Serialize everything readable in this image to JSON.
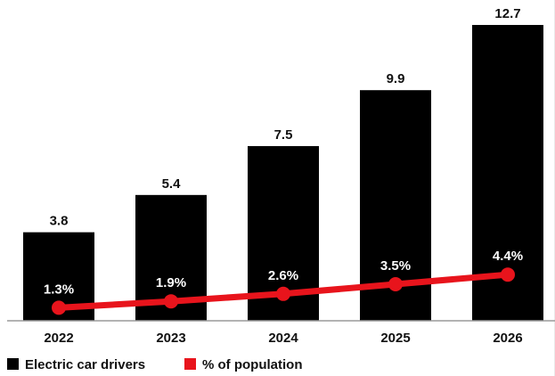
{
  "chart_data": {
    "type": "bar",
    "categories": [
      "2022",
      "2023",
      "2024",
      "2025",
      "2026"
    ],
    "series": [
      {
        "name": "Electric car drivers",
        "kind": "bar",
        "color": "#000000",
        "values": [
          3.8,
          5.4,
          7.5,
          9.9,
          12.7
        ],
        "labels": [
          "3.8",
          "5.4",
          "7.5",
          "9.9",
          "12.7"
        ]
      },
      {
        "name": "% of population",
        "kind": "line",
        "color": "#e8141c",
        "values": [
          1.3,
          1.9,
          2.6,
          3.5,
          4.4
        ],
        "labels": [
          "1.3%",
          "1.9%",
          "2.6%",
          "3.5%",
          "4.4%"
        ]
      }
    ],
    "title": "",
    "xlabel": "",
    "ylabel": "",
    "ylim": [
      0,
      12.7
    ],
    "line_ylim": [
      0,
      30
    ],
    "grid": false,
    "legend": {
      "position": "bottom-left"
    }
  }
}
